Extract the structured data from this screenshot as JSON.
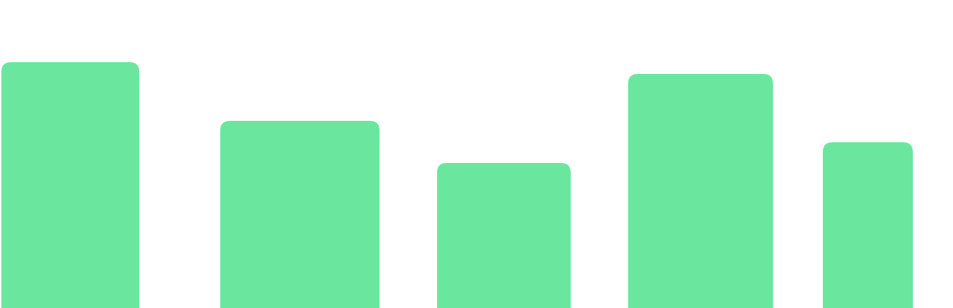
{
  "chart_data": {
    "type": "bar",
    "categories": [
      "",
      "",
      "",
      "",
      ""
    ],
    "values": [
      356,
      271,
      210,
      339,
      240
    ],
    "ylim": [
      0,
      446
    ],
    "grid": false,
    "legend": "none",
    "colors": {
      "bar": "#6BE69F",
      "background": "#FFFFFF"
    }
  }
}
